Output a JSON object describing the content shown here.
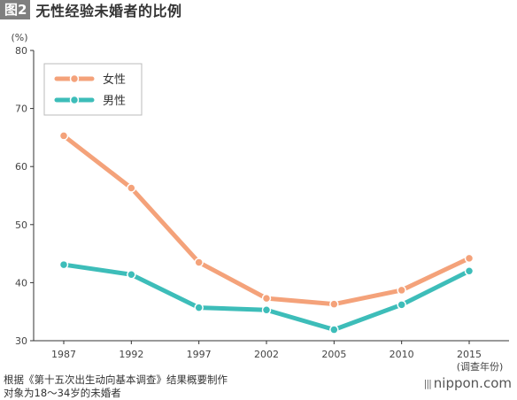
{
  "header": {
    "figure_label": "图2",
    "title": "无性经验未婚者的比例"
  },
  "chart_data": {
    "type": "line",
    "title": "无性经验未婚者的比例",
    "ylabel": "(%)",
    "xlabel": "(调查年份)",
    "ylim": [
      30,
      80
    ],
    "yticks": [
      30,
      40,
      50,
      60,
      70,
      80
    ],
    "categories": [
      "1987",
      "1992",
      "1997",
      "2002",
      "2005",
      "2010",
      "2015"
    ],
    "grid": false,
    "legend_position": "top-left",
    "series": [
      {
        "name": "女性",
        "color": "#f4a27a",
        "values": [
          65.3,
          56.3,
          43.5,
          37.3,
          36.3,
          38.7,
          44.2
        ]
      },
      {
        "name": "男性",
        "color": "#3dbdb9",
        "values": [
          43.1,
          41.4,
          35.7,
          35.3,
          31.9,
          36.2,
          42.0
        ]
      }
    ]
  },
  "footnotes": {
    "source": "根据《第十五次出生动向基本调查》结果概要制作",
    "note": "对象为18～34岁的未婚者"
  },
  "brand": {
    "mark": "|||",
    "name": "nippon.com"
  }
}
